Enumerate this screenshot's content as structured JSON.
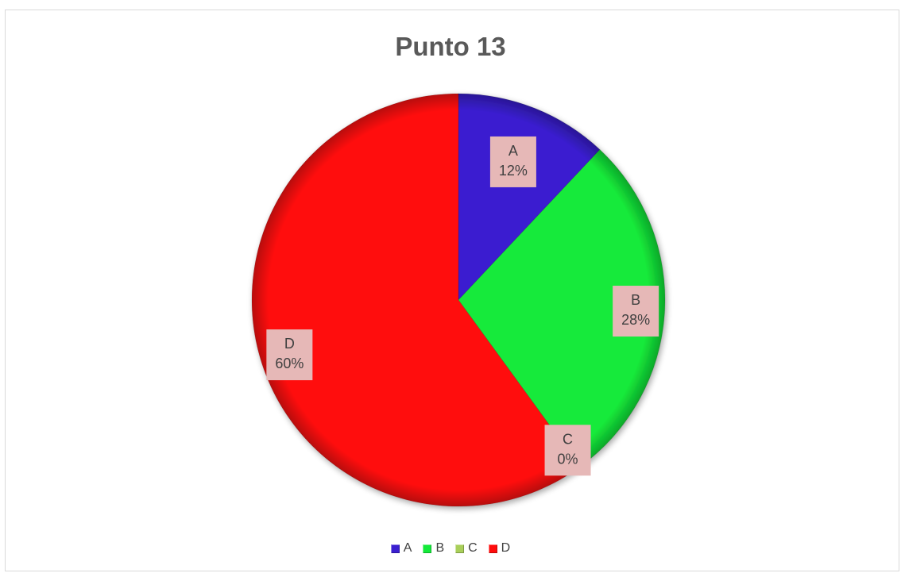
{
  "chart": {
    "title": "Punto 13"
  },
  "chart_data": {
    "type": "pie",
    "title": "Punto 13",
    "categories": [
      "A",
      "B",
      "C",
      "D"
    ],
    "values": [
      12,
      28,
      0,
      60
    ],
    "value_unit": "%",
    "data_labels": [
      "A\n12%",
      "B\n28%",
      "C\n0%",
      "D\n60%"
    ],
    "colors": [
      "#3a1fd0",
      "#14ea3a",
      "#a9cf5a",
      "#ff0c0c"
    ],
    "start_angle": "12 o'clock",
    "direction": "clockwise",
    "legend_position": "bottom",
    "data_label_background": "#e6b8b7"
  }
}
